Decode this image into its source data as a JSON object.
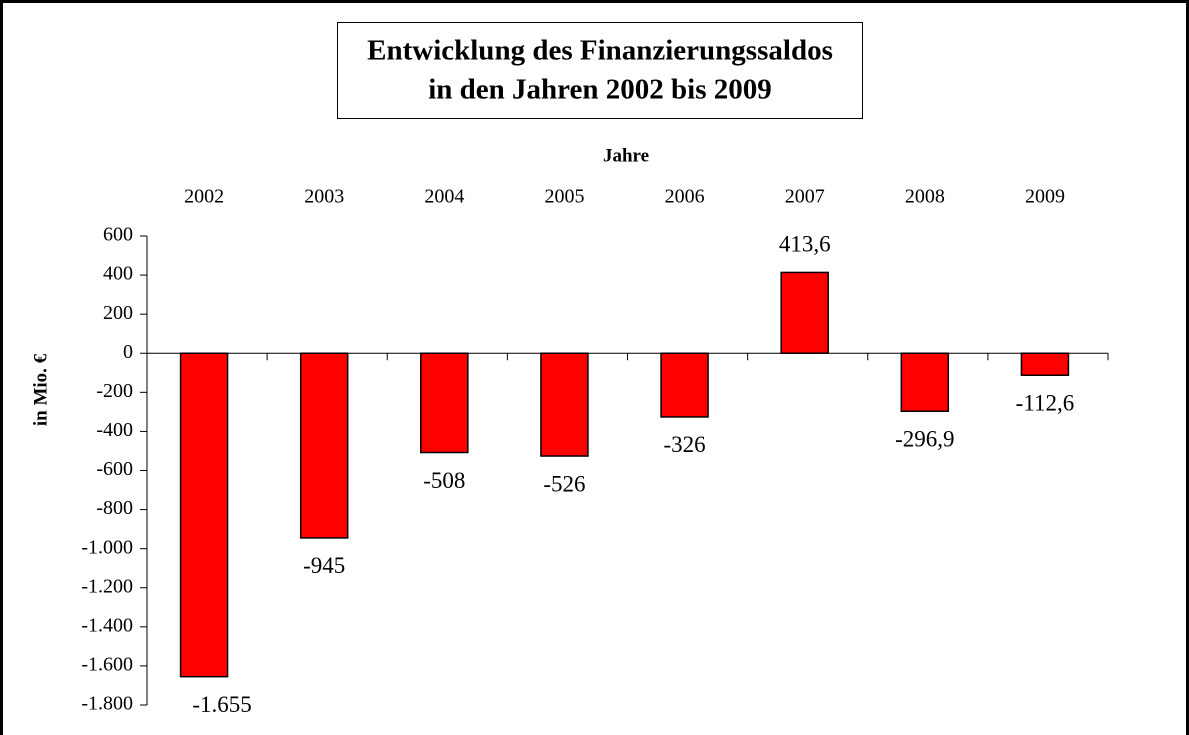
{
  "chart_data": {
    "type": "bar",
    "title": [
      "Entwicklung des Finanzierungssaldos",
      "in den Jahren 2002 bis 2009"
    ],
    "x_label": "Jahre",
    "y_label": "in Mio. €",
    "categories": [
      "2002",
      "2003",
      "2004",
      "2005",
      "2006",
      "2007",
      "2008",
      "2009"
    ],
    "values": [
      -1655,
      -945,
      -508,
      -526,
      -326,
      413.6,
      -296.9,
      -112.6
    ],
    "value_labels": [
      "-1.655",
      "-945",
      "-508",
      "-526",
      "-326",
      "413,6",
      "-296,9",
      "-112,6"
    ],
    "color": "#ff0000",
    "ylim": [
      -1800,
      600
    ],
    "yticks": [
      600,
      400,
      200,
      0,
      -200,
      -400,
      -600,
      -800,
      {
        "value": -1000,
        "label": "-1.000"
      },
      {
        "value": -1200,
        "label": "-1.200"
      },
      {
        "value": -1400,
        "label": "-1.400"
      },
      {
        "value": -1600,
        "label": "-1.600"
      },
      {
        "value": -1800,
        "label": "-1.800"
      }
    ]
  }
}
